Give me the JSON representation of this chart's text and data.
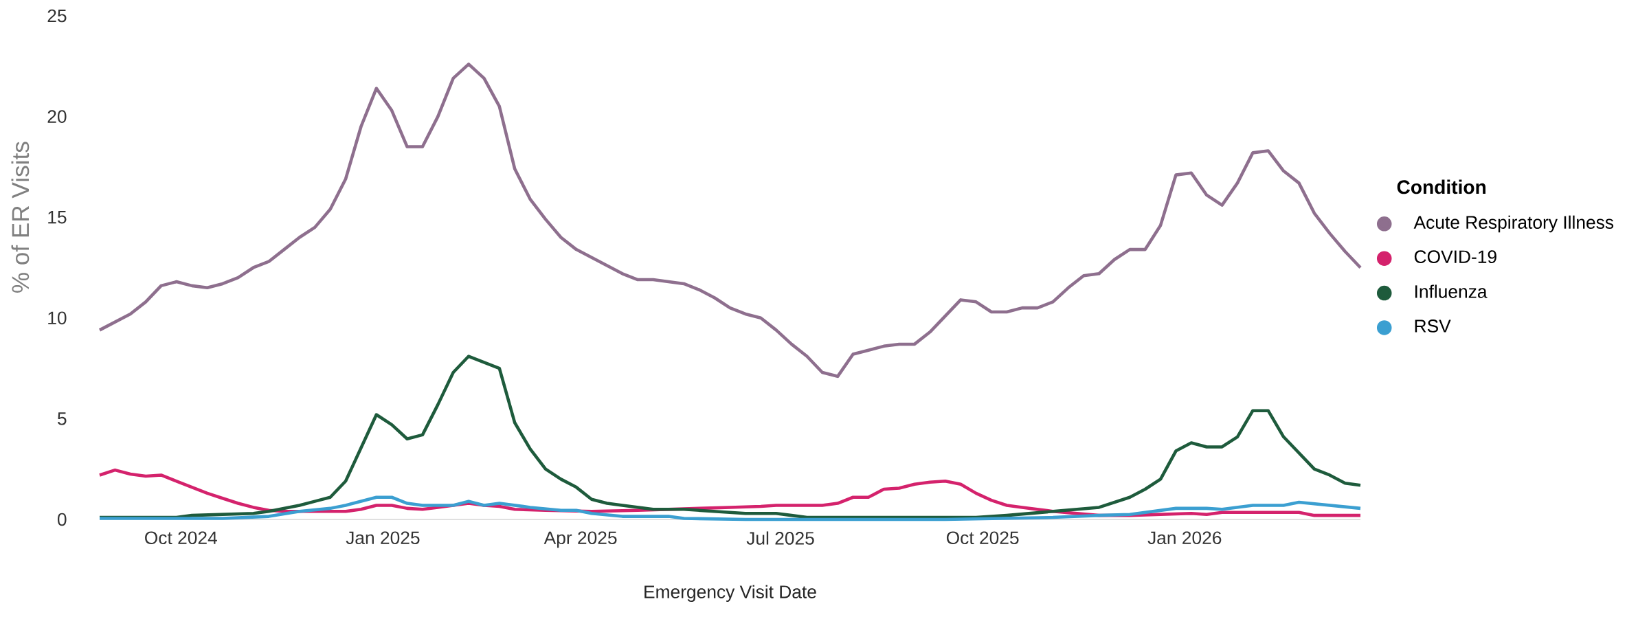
{
  "chart_data": {
    "type": "line",
    "xlabel": "Emergency Visit Date",
    "ylabel": "% of ER Visits",
    "legend_title": "Condition",
    "legend": "right",
    "xlim": [
      "2024-08-25",
      "2026-03-22"
    ],
    "ylim": [
      0,
      25
    ],
    "yticks": [
      0,
      5,
      10,
      15,
      20,
      25
    ],
    "xticks": [
      {
        "value": "2024-10-01",
        "label": "Oct 2024"
      },
      {
        "value": "2025-01-01",
        "label": "Jan 2025"
      },
      {
        "value": "2025-04-01",
        "label": "Apr 2025"
      },
      {
        "value": "2025-07-01",
        "label": "Jul 2025"
      },
      {
        "value": "2025-10-01",
        "label": "Oct 2025"
      },
      {
        "value": "2026-01-01",
        "label": "Jan 2026"
      }
    ],
    "x": [
      "2024-08-25",
      "2024-09-01",
      "2024-09-08",
      "2024-09-15",
      "2024-09-22",
      "2024-09-29",
      "2024-10-06",
      "2024-10-13",
      "2024-10-20",
      "2024-10-27",
      "2024-11-03",
      "2024-11-10",
      "2024-11-17",
      "2024-11-24",
      "2024-12-01",
      "2024-12-08",
      "2024-12-15",
      "2024-12-22",
      "2024-12-29",
      "2025-01-05",
      "2025-01-12",
      "2025-01-19",
      "2025-01-26",
      "2025-02-02",
      "2025-02-09",
      "2025-02-16",
      "2025-02-23",
      "2025-03-02",
      "2025-03-09",
      "2025-03-16",
      "2025-03-23",
      "2025-03-30",
      "2025-04-06",
      "2025-04-13",
      "2025-04-20",
      "2025-04-27",
      "2025-05-04",
      "2025-05-11",
      "2025-05-18",
      "2025-05-25",
      "2025-06-01",
      "2025-06-08",
      "2025-06-15",
      "2025-06-22",
      "2025-06-29",
      "2025-07-06",
      "2025-07-13",
      "2025-07-20",
      "2025-07-27",
      "2025-08-03",
      "2025-08-10",
      "2025-08-17",
      "2025-08-24",
      "2025-08-31",
      "2025-09-07",
      "2025-09-14",
      "2025-09-21",
      "2025-09-28",
      "2025-10-05",
      "2025-10-12",
      "2025-10-19",
      "2025-10-26",
      "2025-11-02",
      "2025-11-09",
      "2025-11-16",
      "2025-11-23",
      "2025-11-30",
      "2025-12-07",
      "2025-12-14",
      "2025-12-21",
      "2025-12-28",
      "2026-01-04",
      "2026-01-11",
      "2026-01-18",
      "2026-01-25",
      "2026-02-01",
      "2026-02-08",
      "2026-02-15",
      "2026-02-22",
      "2026-03-01",
      "2026-03-08",
      "2026-03-15",
      "2026-03-22"
    ],
    "series": [
      {
        "name": "Acute Respiratory Illness",
        "color": "#8e6f8e",
        "values": [
          9.4,
          9.8,
          10.2,
          10.8,
          11.6,
          11.8,
          11.6,
          11.5,
          11.7,
          12.0,
          12.5,
          12.8,
          13.4,
          14.0,
          14.5,
          15.4,
          16.9,
          19.5,
          21.4,
          20.3,
          18.5,
          18.5,
          20.0,
          21.9,
          22.6,
          21.9,
          20.5,
          17.4,
          15.9,
          14.9,
          14.0,
          13.4,
          13.0,
          12.6,
          12.2,
          11.9,
          11.9,
          11.8,
          11.7,
          11.4,
          11.0,
          10.5,
          10.2,
          10.0,
          9.4,
          8.7,
          8.1,
          7.3,
          7.1,
          8.2,
          8.4,
          8.6,
          8.7,
          8.7,
          9.3,
          10.1,
          10.9,
          10.8,
          10.3,
          10.3,
          10.5,
          10.5,
          10.8,
          11.5,
          12.1,
          12.2,
          12.9,
          13.4,
          13.4,
          14.6,
          17.1,
          17.2,
          16.1,
          15.6,
          16.7,
          18.2,
          18.3,
          17.3,
          16.7,
          15.2,
          14.2,
          13.3,
          12.5
        ]
      },
      {
        "name": "COVID-19",
        "color": "#d4226c",
        "x": [
          "2024-08-25",
          "2024-09-01",
          "2024-09-08",
          "2024-09-15",
          "2024-09-22",
          "2024-09-29",
          "2024-10-06",
          "2024-10-13",
          "2024-10-20",
          "2024-10-27",
          "2024-11-03",
          "2024-11-10",
          "2024-11-17",
          "2024-12-15",
          "2024-12-22",
          "2024-12-29",
          "2025-01-05",
          "2025-01-12",
          "2025-01-19",
          "2025-01-26",
          "2025-02-02",
          "2025-02-09",
          "2025-02-16",
          "2025-02-23",
          "2025-03-02",
          "2025-03-16",
          "2025-04-06",
          "2025-04-27",
          "2025-05-25",
          "2025-06-08",
          "2025-06-22",
          "2025-06-29",
          "2025-07-20",
          "2025-07-27",
          "2025-08-03",
          "2025-08-10",
          "2025-08-17",
          "2025-08-24",
          "2025-08-31",
          "2025-09-07",
          "2025-09-14",
          "2025-09-21",
          "2025-09-28",
          "2025-10-05",
          "2025-10-12",
          "2025-10-19",
          "2025-11-02",
          "2025-11-23",
          "2025-12-07",
          "2026-01-04",
          "2026-01-11",
          "2026-01-18",
          "2026-02-22",
          "2026-03-01",
          "2026-03-22"
        ],
        "values": [
          2.2,
          2.45,
          2.25,
          2.15,
          2.2,
          1.9,
          1.6,
          1.3,
          1.05,
          0.8,
          0.6,
          0.45,
          0.4,
          0.4,
          0.5,
          0.7,
          0.7,
          0.55,
          0.5,
          0.6,
          0.7,
          0.8,
          0.7,
          0.65,
          0.5,
          0.45,
          0.4,
          0.45,
          0.55,
          0.6,
          0.65,
          0.7,
          0.7,
          0.8,
          1.1,
          1.1,
          1.5,
          1.55,
          1.75,
          1.85,
          1.9,
          1.75,
          1.3,
          0.95,
          0.7,
          0.6,
          0.4,
          0.2,
          0.2,
          0.3,
          0.25,
          0.35,
          0.35,
          0.2,
          0.2
        ]
      },
      {
        "name": "Influenza",
        "color": "#1e5b3c",
        "x": [
          "2024-08-25",
          "2024-09-29",
          "2024-10-06",
          "2024-11-03",
          "2024-11-10",
          "2024-11-24",
          "2024-12-01",
          "2024-12-08",
          "2024-12-15",
          "2024-12-29",
          "2025-01-05",
          "2025-01-12",
          "2025-01-19",
          "2025-01-26",
          "2025-02-02",
          "2025-02-09",
          "2025-02-16",
          "2025-02-23",
          "2025-03-02",
          "2025-03-09",
          "2025-03-16",
          "2025-03-23",
          "2025-03-30",
          "2025-04-06",
          "2025-04-13",
          "2025-04-20",
          "2025-05-04",
          "2025-05-18",
          "2025-06-01",
          "2025-06-15",
          "2025-06-29",
          "2025-07-06",
          "2025-07-13",
          "2025-09-28",
          "2025-10-12",
          "2025-11-02",
          "2025-11-23",
          "2025-12-07",
          "2025-12-14",
          "2025-12-21",
          "2025-12-28",
          "2026-01-04",
          "2026-01-11",
          "2026-01-18",
          "2026-01-25",
          "2026-02-01",
          "2026-02-08",
          "2026-02-15",
          "2026-02-22",
          "2026-03-01",
          "2026-03-08",
          "2026-03-15",
          "2026-03-22"
        ],
        "values": [
          0.1,
          0.1,
          0.2,
          0.3,
          0.4,
          0.7,
          0.9,
          1.1,
          1.9,
          5.2,
          4.7,
          4.0,
          4.2,
          5.7,
          7.3,
          8.1,
          7.8,
          7.5,
          4.8,
          3.5,
          2.5,
          2.0,
          1.6,
          1.0,
          0.8,
          0.7,
          0.5,
          0.5,
          0.4,
          0.3,
          0.3,
          0.2,
          0.1,
          0.1,
          0.2,
          0.4,
          0.6,
          1.1,
          1.5,
          2.0,
          3.4,
          3.8,
          3.6,
          3.6,
          4.1,
          5.4,
          5.4,
          4.1,
          3.3,
          2.5,
          2.2,
          1.8,
          1.7
        ]
      },
      {
        "name": "RSV",
        "color": "#3b9fd1",
        "x": [
          "2024-08-25",
          "2024-10-20",
          "2024-11-10",
          "2024-11-24",
          "2024-12-08",
          "2024-12-15",
          "2024-12-29",
          "2025-01-05",
          "2025-01-12",
          "2025-01-19",
          "2025-02-02",
          "2025-02-09",
          "2025-02-16",
          "2025-02-23",
          "2025-03-09",
          "2025-03-23",
          "2025-03-30",
          "2025-04-06",
          "2025-04-20",
          "2025-05-11",
          "2025-05-18",
          "2025-06-15",
          "2025-09-14",
          "2025-11-02",
          "2025-11-23",
          "2025-12-07",
          "2025-12-28",
          "2026-01-11",
          "2026-01-18",
          "2026-02-01",
          "2026-02-15",
          "2026-02-22",
          "2026-03-08",
          "2026-03-22"
        ],
        "values": [
          0.05,
          0.05,
          0.15,
          0.4,
          0.55,
          0.7,
          1.1,
          1.1,
          0.8,
          0.7,
          0.7,
          0.9,
          0.7,
          0.8,
          0.6,
          0.45,
          0.45,
          0.3,
          0.15,
          0.15,
          0.05,
          0,
          0,
          0.1,
          0.2,
          0.25,
          0.55,
          0.55,
          0.5,
          0.7,
          0.7,
          0.85,
          0.7,
          0.55
        ]
      }
    ]
  }
}
